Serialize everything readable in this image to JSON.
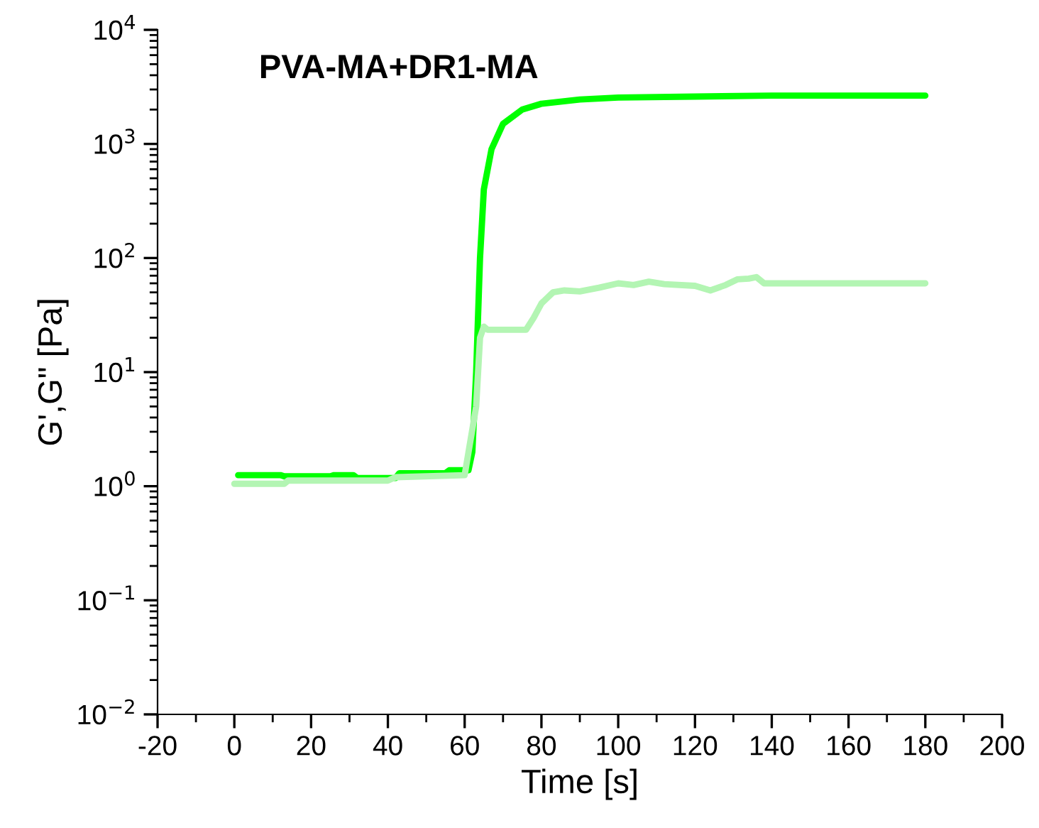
{
  "chart_data": {
    "type": "line",
    "title": "PVA-MA+DR1-MA",
    "xlabel": "Time [s]",
    "ylabel": "G',G\" [Pa]",
    "log": "y",
    "xlim": [
      -20,
      200
    ],
    "xticks": [
      -20,
      0,
      20,
      40,
      60,
      80,
      100,
      120,
      140,
      160,
      180,
      200
    ],
    "ylim": [
      0.01,
      10000
    ],
    "yticks": [
      {
        "value": 0.01,
        "label": "10$^{−2}$"
      },
      {
        "value": 0.1,
        "label": "10$^{−1}$"
      },
      {
        "value": 1,
        "label": "10$^{0}$"
      },
      {
        "value": 10,
        "label": "10$^{1}$"
      },
      {
        "value": 100,
        "label": "10$^{2}$"
      },
      {
        "value": 1000,
        "label": "10$^{3}$"
      },
      {
        "value": 10000,
        "label": "10$^{4}$"
      }
    ],
    "grid": false,
    "marker": "none",
    "line_style": "solid",
    "series": [
      {
        "color": "#00ff00",
        "x": [
          1,
          12,
          13,
          25,
          26,
          31,
          32,
          42,
          43,
          55,
          56,
          61,
          62,
          63,
          64,
          65,
          67,
          70,
          75,
          80,
          90,
          100,
          120,
          140,
          180
        ],
        "values": [
          1.25,
          1.25,
          1.22,
          1.22,
          1.25,
          1.25,
          1.18,
          1.18,
          1.3,
          1.3,
          1.38,
          1.38,
          2,
          10,
          100,
          400,
          900,
          1500,
          2000,
          2250,
          2450,
          2550,
          2600,
          2650,
          2650
        ]
      },
      {
        "color": "#b3f5b3",
        "x": [
          0,
          13,
          14,
          40,
          42,
          60,
          63,
          64,
          65,
          66,
          76,
          78,
          80,
          83,
          86,
          90,
          95,
          100,
          104,
          108,
          112,
          120,
          124,
          128,
          131,
          134,
          136,
          138,
          180
        ],
        "values": [
          1.05,
          1.05,
          1.12,
          1.12,
          1.2,
          1.25,
          5,
          20,
          25,
          23.5,
          23.5,
          30,
          40,
          50,
          52,
          51,
          55,
          60,
          58,
          62,
          59,
          57,
          52,
          58,
          65,
          66,
          68,
          60,
          60
        ]
      }
    ]
  }
}
